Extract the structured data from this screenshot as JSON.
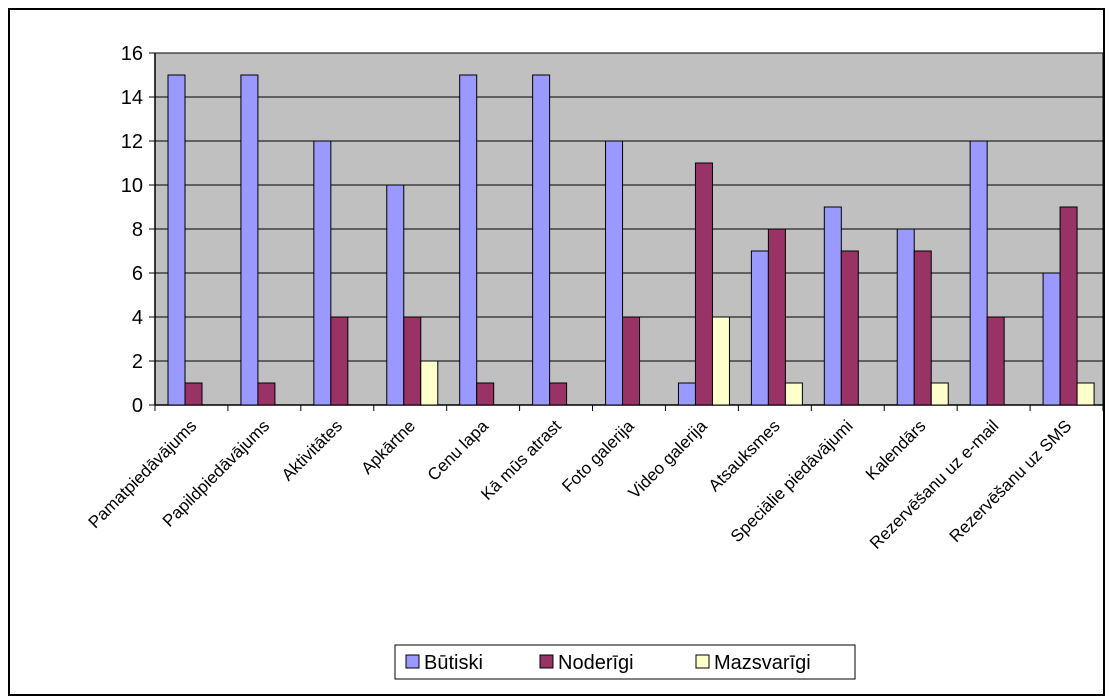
{
  "chart_data": {
    "type": "bar",
    "title": "",
    "xlabel": "",
    "ylabel": "",
    "ylim": [
      0,
      16
    ],
    "yticks": [
      0,
      2,
      4,
      6,
      8,
      10,
      12,
      14,
      16
    ],
    "grid": true,
    "legend_position": "bottom",
    "categories": [
      "Pamatpiedāvājums",
      "Papildpiedāvājums",
      "Aktivitātes",
      "Apkārtne",
      "Cenu lapa",
      "Kā mūs atrast",
      "Foto galerija",
      "Video galerija",
      "Atsauksmes",
      "Speciālie piedāvājumi",
      "Kalendārs",
      "Rezervēšanu uz e-mail",
      "Rezervēšanu uz SMS"
    ],
    "series": [
      {
        "name": "Būtiski",
        "color": "#9999FF",
        "values": [
          15,
          15,
          12,
          10,
          15,
          15,
          12,
          1,
          7,
          9,
          8,
          12,
          6
        ]
      },
      {
        "name": "Noderīgi",
        "color": "#993366",
        "values": [
          1,
          1,
          4,
          4,
          1,
          1,
          4,
          11,
          8,
          7,
          7,
          4,
          9
        ]
      },
      {
        "name": "Mazsvarīgi",
        "color": "#FFFFCC",
        "values": [
          0,
          0,
          0,
          2,
          0,
          0,
          0,
          4,
          1,
          0,
          1,
          0,
          1
        ]
      }
    ],
    "plot_background": "#C0C0C0"
  }
}
